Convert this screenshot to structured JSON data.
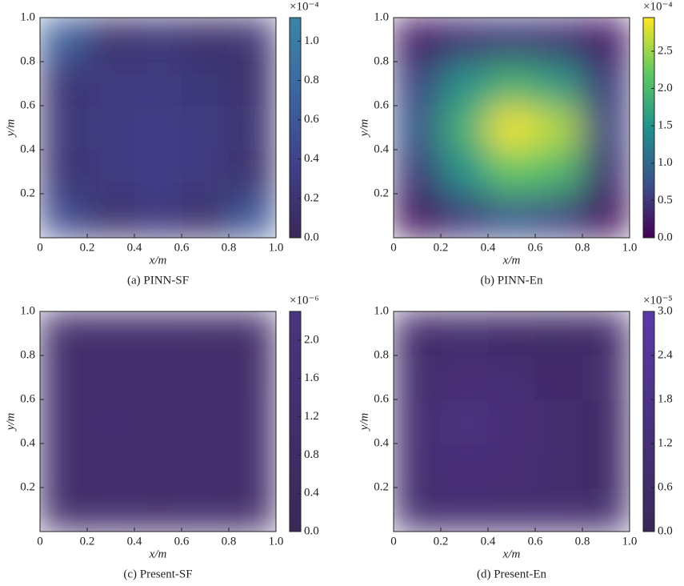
{
  "chart_data": [
    {
      "type": "heatmap",
      "caption": "(a) PINN-SF",
      "xlabel": "x/m",
      "ylabel": "y/m",
      "xlim": [
        0,
        1
      ],
      "ylim": [
        0,
        1
      ],
      "xticks": [
        0,
        0.2,
        0.4,
        0.6,
        0.8,
        {
          "value": 1,
          "label": "1.0"
        }
      ],
      "yticks": [
        0.2,
        0.4,
        0.6,
        0.8,
        {
          "value": 1,
          "label": "1.0"
        }
      ],
      "values": [
        [
          0.5,
          0.15,
          0.3,
          0.15,
          0.6
        ],
        [
          0.2,
          0.3,
          0.35,
          0.3,
          0.15
        ],
        [
          0.25,
          0.3,
          0.35,
          0.3,
          0.2
        ],
        [
          0.2,
          0.3,
          0.3,
          0.25,
          0.15
        ],
        [
          0.7,
          0.15,
          0.25,
          0.15,
          0.2
        ]
      ],
      "clim": [
        0,
        1.12
      ],
      "cticks": [
        {
          "value": 0,
          "label": "0.0"
        },
        0.2,
        0.4,
        0.6,
        0.8,
        {
          "value": 1,
          "label": "1.0"
        }
      ],
      "colorbar_label": "×10⁻⁴",
      "colormap": [
        "#3a2858",
        "#40408a",
        "#3c67a0",
        "#3b85a6"
      ]
    },
    {
      "type": "heatmap",
      "caption": "(b) PINN-En",
      "xlabel": "x/m",
      "ylabel": "y/m",
      "xlim": [
        0,
        1
      ],
      "ylim": [
        0,
        1
      ],
      "xticks": [
        0,
        0.2,
        0.4,
        0.6,
        0.8,
        {
          "value": 1,
          "label": "1.0"
        }
      ],
      "yticks": [
        0.2,
        0.4,
        0.6,
        0.8,
        {
          "value": 1,
          "label": "1.0"
        }
      ],
      "values": [
        [
          0.1,
          0.5,
          0.8,
          0.6,
          0.1
        ],
        [
          0.5,
          1.5,
          2.2,
          2.0,
          0.4
        ],
        [
          0.8,
          1.9,
          2.9,
          2.6,
          0.6
        ],
        [
          0.6,
          1.5,
          1.9,
          1.6,
          0.5
        ],
        [
          0.2,
          0.4,
          0.5,
          0.4,
          0.2
        ]
      ],
      "clim": [
        0,
        2.95
      ],
      "cticks": [
        {
          "value": 0,
          "label": "0.0"
        },
        0.5,
        {
          "value": 1,
          "label": "1.0"
        },
        1.5,
        {
          "value": 2,
          "label": "2.0"
        },
        2.5
      ],
      "colorbar_label": "×10⁻⁴",
      "colormap": [
        "#440154",
        "#3b528b",
        "#21918c",
        "#5ec962",
        "#fde725"
      ]
    },
    {
      "type": "heatmap",
      "caption": "(c) Present-SF",
      "xlabel": "x/m",
      "ylabel": "y/m",
      "xlim": [
        0,
        1
      ],
      "ylim": [
        0,
        1
      ],
      "xticks": [
        0,
        0.2,
        0.4,
        0.6,
        0.8,
        {
          "value": 1,
          "label": "1.0"
        }
      ],
      "yticks": [
        0.2,
        0.4,
        0.6,
        0.8,
        {
          "value": 1,
          "label": "1.0"
        }
      ],
      "values": [
        [
          1.1,
          1.2,
          1.1,
          1.2,
          1.1
        ],
        [
          1.2,
          1.2,
          1.3,
          1.2,
          1.2
        ],
        [
          1.2,
          1.3,
          1.2,
          1.2,
          1.2
        ],
        [
          1.2,
          1.2,
          1.2,
          1.2,
          1.1
        ],
        [
          1.1,
          1.2,
          1.2,
          1.1,
          1.1
        ]
      ],
      "clim": [
        0,
        2.3
      ],
      "cticks": [
        {
          "value": 0,
          "label": "0.0"
        },
        0.4,
        0.8,
        1.2,
        1.6,
        {
          "value": 2,
          "label": "2.0"
        }
      ],
      "colorbar_label": "×10⁻⁶",
      "colormap": [
        "#3a2858",
        "#4a3580"
      ]
    },
    {
      "type": "heatmap",
      "caption": "(d) Present-En",
      "xlabel": "x/m",
      "ylabel": "y/m",
      "xlim": [
        0,
        1
      ],
      "ylim": [
        0,
        1
      ],
      "xticks": [
        0,
        0.2,
        0.4,
        0.6,
        0.8,
        {
          "value": 1,
          "label": "1.0"
        }
      ],
      "yticks": [
        0.2,
        0.4,
        0.6,
        0.8,
        {
          "value": 1,
          "label": "1.0"
        }
      ],
      "values": [
        [
          0.8,
          1.0,
          0.9,
          0.9,
          0.8
        ],
        [
          0.9,
          1.2,
          1.1,
          0.8,
          0.5
        ],
        [
          0.9,
          1.5,
          1.2,
          0.9,
          0.6
        ],
        [
          0.8,
          1.1,
          1.0,
          0.7,
          0.8
        ],
        [
          0.7,
          0.8,
          0.6,
          0.4,
          0.7
        ]
      ],
      "clim": [
        0,
        3
      ],
      "cticks": [
        {
          "value": 0,
          "label": "0.0"
        },
        0.6,
        1.2,
        1.8,
        2.4,
        {
          "value": 3,
          "label": "3.0"
        }
      ],
      "colorbar_label": "×10⁻⁵",
      "colormap": [
        "#3a2858",
        "#5b3aa8"
      ]
    }
  ]
}
